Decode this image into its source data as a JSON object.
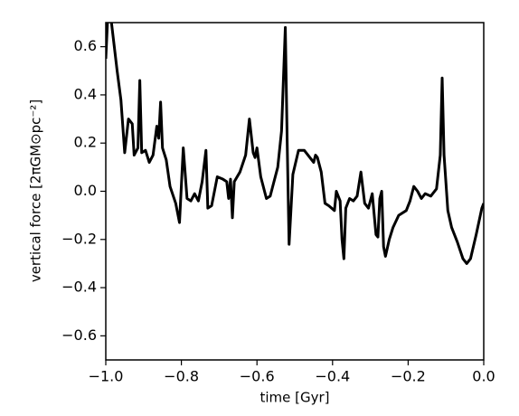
{
  "chart_data": {
    "type": "line",
    "xlabel": "time [Gyr]",
    "ylabel": "vertical force [2πGM⊙pc⁻²]",
    "xlim": [
      -1.0,
      0.0
    ],
    "ylim": [
      -0.7,
      0.7
    ],
    "xticks": [
      {
        "value": -1.0,
        "label": "−1.0"
      },
      {
        "value": -0.8,
        "label": "−0.8"
      },
      {
        "value": -0.6,
        "label": "−0.6"
      },
      {
        "value": -0.4,
        "label": "−0.4"
      },
      {
        "value": -0.2,
        "label": "−0.2"
      },
      {
        "value": 0.0,
        "label": "0.0"
      }
    ],
    "yticks": [
      {
        "value": -0.6,
        "label": "−0.6"
      },
      {
        "value": -0.4,
        "label": "−0.4"
      },
      {
        "value": -0.2,
        "label": "−0.2"
      },
      {
        "value": 0.0,
        "label": "0.0"
      },
      0.2,
      0.4,
      0.6
    ],
    "grid": false,
    "series": [
      {
        "color": "#000000",
        "x": [
          -1.0,
          -0.995,
          -0.985,
          -0.97,
          -0.96,
          -0.95,
          -0.94,
          -0.93,
          -0.925,
          -0.915,
          -0.91,
          -0.905,
          -0.895,
          -0.885,
          -0.875,
          -0.865,
          -0.86,
          -0.855,
          -0.85,
          -0.84,
          -0.83,
          -0.815,
          -0.805,
          -0.795,
          -0.785,
          -0.775,
          -0.765,
          -0.755,
          -0.745,
          -0.735,
          -0.73,
          -0.72,
          -0.705,
          -0.69,
          -0.68,
          -0.675,
          -0.67,
          -0.665,
          -0.66,
          -0.645,
          -0.63,
          -0.62,
          -0.61,
          -0.605,
          -0.6,
          -0.59,
          -0.575,
          -0.565,
          -0.545,
          -0.535,
          -0.525,
          -0.52,
          -0.515,
          -0.505,
          -0.49,
          -0.475,
          -0.46,
          -0.45,
          -0.445,
          -0.44,
          -0.43,
          -0.42,
          -0.41,
          -0.395,
          -0.39,
          -0.38,
          -0.375,
          -0.37,
          -0.365,
          -0.355,
          -0.345,
          -0.335,
          -0.325,
          -0.315,
          -0.305,
          -0.295,
          -0.285,
          -0.28,
          -0.275,
          -0.27,
          -0.265,
          -0.26,
          -0.25,
          -0.24,
          -0.225,
          -0.205,
          -0.195,
          -0.185,
          -0.175,
          -0.165,
          -0.155,
          -0.14,
          -0.125,
          -0.115,
          -0.11,
          -0.105,
          -0.095,
          -0.085,
          -0.07,
          -0.055,
          -0.045,
          -0.035,
          -0.02,
          -0.005,
          0.0
        ],
        "values": [
          0.55,
          0.72,
          0.7,
          0.5,
          0.38,
          0.16,
          0.3,
          0.28,
          0.15,
          0.18,
          0.46,
          0.16,
          0.17,
          0.12,
          0.15,
          0.27,
          0.22,
          0.37,
          0.18,
          0.13,
          0.02,
          -0.05,
          -0.13,
          0.18,
          -0.03,
          -0.04,
          -0.01,
          -0.04,
          0.04,
          0.17,
          -0.07,
          -0.06,
          0.06,
          0.05,
          0.04,
          -0.03,
          0.05,
          -0.11,
          0.04,
          0.08,
          0.15,
          0.3,
          0.16,
          0.14,
          0.18,
          0.06,
          -0.03,
          -0.02,
          0.1,
          0.25,
          0.68,
          0.2,
          -0.22,
          0.07,
          0.17,
          0.17,
          0.14,
          0.12,
          0.15,
          0.14,
          0.08,
          -0.05,
          -0.06,
          -0.08,
          0.0,
          -0.04,
          -0.2,
          -0.28,
          -0.07,
          -0.03,
          -0.04,
          -0.02,
          0.08,
          -0.05,
          -0.07,
          -0.01,
          -0.18,
          -0.19,
          -0.03,
          0.0,
          -0.23,
          -0.27,
          -0.2,
          -0.15,
          -0.1,
          -0.08,
          -0.04,
          0.02,
          0.0,
          -0.03,
          -0.01,
          -0.02,
          0.01,
          0.15,
          0.47,
          0.15,
          -0.08,
          -0.15,
          -0.21,
          -0.28,
          -0.3,
          -0.28,
          -0.18,
          -0.07,
          -0.05
        ]
      }
    ]
  }
}
